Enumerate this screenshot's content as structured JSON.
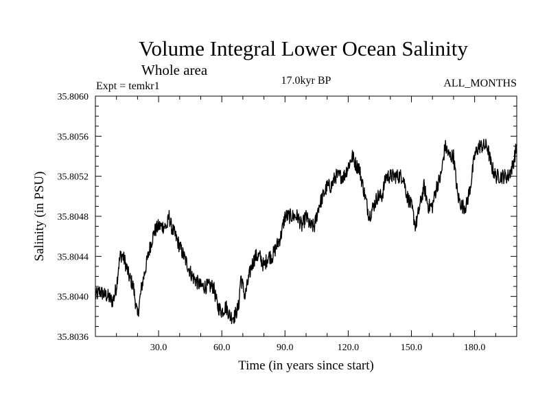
{
  "chart_data": {
    "type": "line",
    "title": "Volume Integral Lower Ocean Salinity",
    "subtitle": "Whole area",
    "experiment_label": "Expt = temkr1",
    "period_label": "17.0kyr BP",
    "months_label": "ALL_MONTHS",
    "xlabel": "Time (in years since start)",
    "ylabel": "Salinity (in PSU)",
    "xlim": [
      0,
      200
    ],
    "ylim": [
      35.8036,
      35.806
    ],
    "xticks": [
      30,
      60,
      90,
      120,
      150,
      180
    ],
    "xtick_labels": [
      "30.0",
      "60.0",
      "90.0",
      "120.0",
      "150.0",
      "180.0"
    ],
    "yticks": [
      35.8036,
      35.804,
      35.8044,
      35.8048,
      35.8052,
      35.8056,
      35.806
    ],
    "ytick_labels": [
      "35.8036",
      "35.8040",
      "35.8044",
      "35.8048",
      "35.8052",
      "35.8056",
      "35.8060"
    ],
    "series": [
      {
        "name": "Lower ocean salinity",
        "color": "#000000",
        "x": [
          0,
          2,
          4,
          6,
          8,
          9,
          10,
          11,
          12,
          13,
          14,
          16,
          18,
          20,
          22,
          24,
          26,
          28,
          30,
          32,
          34,
          35,
          36,
          38,
          40,
          42,
          44,
          46,
          48,
          50,
          52,
          54,
          56,
          58,
          60,
          62,
          64,
          66,
          68,
          69,
          70,
          71,
          72,
          74,
          76,
          78,
          80,
          82,
          84,
          86,
          88,
          90,
          92,
          94,
          96,
          98,
          100,
          102,
          104,
          106,
          108,
          110,
          112,
          114,
          116,
          118,
          120,
          122,
          124,
          125,
          126,
          128,
          130,
          132,
          134,
          136,
          138,
          140,
          142,
          144,
          146,
          148,
          150,
          152,
          154,
          156,
          158,
          160,
          162,
          164,
          166,
          168,
          170,
          172,
          174,
          176,
          178,
          180,
          182,
          184,
          186,
          188,
          190,
          192,
          194,
          196,
          198,
          200
        ],
        "y": [
          35.804,
          35.80405,
          35.80402,
          35.804,
          35.80395,
          35.804,
          35.8041,
          35.8043,
          35.80442,
          35.8044,
          35.80435,
          35.8042,
          35.8041,
          35.8038,
          35.8041,
          35.8043,
          35.8045,
          35.80465,
          35.8047,
          35.8047,
          35.8047,
          35.8048,
          35.8047,
          35.8046,
          35.8045,
          35.8044,
          35.8043,
          35.8042,
          35.80415,
          35.8041,
          35.8041,
          35.8041,
          35.8041,
          35.8039,
          35.80385,
          35.8039,
          35.8038,
          35.8038,
          35.8039,
          35.8042,
          35.8041,
          35.804,
          35.8041,
          35.8043,
          35.8044,
          35.8044,
          35.8043,
          35.8044,
          35.8044,
          35.8045,
          35.8046,
          35.8048,
          35.8048,
          35.8048,
          35.8048,
          35.8047,
          35.8048,
          35.8047,
          35.8047,
          35.8049,
          35.805,
          35.8051,
          35.8051,
          35.8052,
          35.8052,
          35.8052,
          35.8053,
          35.8054,
          35.8053,
          35.8053,
          35.8052,
          35.805,
          35.8048,
          35.8049,
          35.805,
          35.805,
          35.8052,
          35.8052,
          35.8052,
          35.8052,
          35.8052,
          35.805,
          35.8049,
          35.8047,
          35.8049,
          35.8051,
          35.8049,
          35.8049,
          35.8051,
          35.8052,
          35.8055,
          35.8054,
          35.8054,
          35.805,
          35.8049,
          35.8049,
          35.8051,
          35.8054,
          35.8055,
          35.8055,
          35.8055,
          35.8053,
          35.8052,
          35.8052,
          35.8052,
          35.8052,
          35.8053,
          35.8055
        ]
      }
    ]
  }
}
